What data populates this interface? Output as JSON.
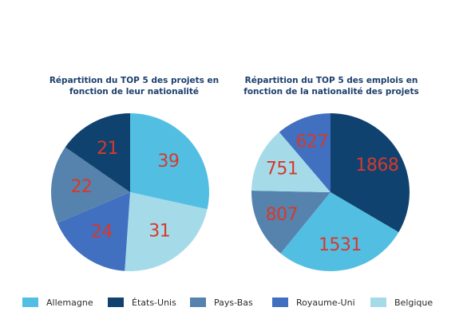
{
  "chart_data": [
    {
      "type": "pie",
      "title": "Répartition du TOP 5 des projets en fonction de leur nationalité",
      "title_lines": [
        "Répartition du TOP 5 des projets en",
        "fonction de leur nationalité"
      ],
      "slices": [
        {
          "label": "Allemagne",
          "value": 39,
          "color": "#52bfe2"
        },
        {
          "label": "Belgique",
          "value": 31,
          "color": "#a5dbe9"
        },
        {
          "label": "Royaume-Uni",
          "value": 24,
          "color": "#4070bf"
        },
        {
          "label": "Pays-Bas",
          "value": 22,
          "color": "#5683ad"
        },
        {
          "label": "États-Unis",
          "value": 21,
          "color": "#0f426f"
        }
      ]
    },
    {
      "type": "pie",
      "title": "Répartition du TOP 5 des emplois en fonction de la nationalité des projets",
      "title_lines": [
        "Répartition du TOP 5 des emplois en",
        "fonction de la nationalité des projets"
      ],
      "slices": [
        {
          "label": "États-Unis",
          "value": 1868,
          "color": "#0f426f"
        },
        {
          "label": "Allemagne",
          "value": 1531,
          "color": "#52bfe2"
        },
        {
          "label": "Pays-Bas",
          "value": 807,
          "color": "#5683ad"
        },
        {
          "label": "Belgique",
          "value": 751,
          "color": "#a5dbe9"
        },
        {
          "label": "Royaume-Uni",
          "value": 627,
          "color": "#4070bf"
        }
      ]
    }
  ],
  "legend": [
    {
      "label": "Allemagne",
      "color": "#52bfe2"
    },
    {
      "label": "États-Unis",
      "color": "#0f426f"
    },
    {
      "label": "Pays-Bas",
      "color": "#5683ad"
    },
    {
      "label": "Royaume-Uni",
      "color": "#4070bf"
    },
    {
      "label": "Belgique",
      "color": "#a5dbe9"
    }
  ],
  "label_color": "#d6392c",
  "title_color": "#1d3f6e"
}
